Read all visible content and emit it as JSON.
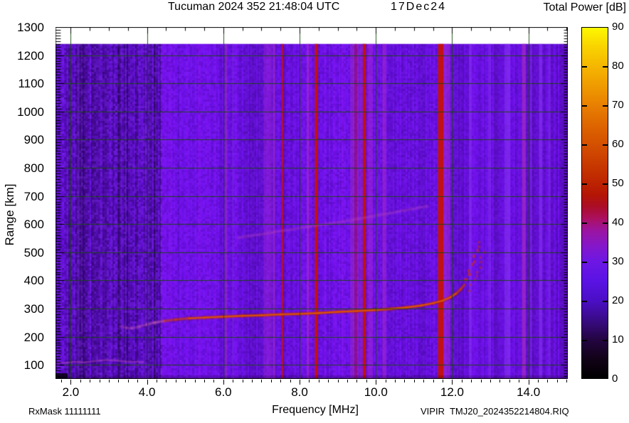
{
  "header": {
    "title": "Tucuman 2024 352 21:48:04 UTC",
    "date": "17Dec24",
    "colorbar_title": "Total Power [dB]"
  },
  "footer": {
    "rx_mask": "RxMask 11111111",
    "file_id": "VIPIR  TMJ20_2024352214804.RIQ"
  },
  "axes": {
    "x": {
      "label": "Frequency [MHz]",
      "min": 1.6,
      "max": 15.0,
      "major_ticks": [
        2,
        4,
        6,
        8,
        10,
        12,
        14
      ],
      "tick_labels": [
        "2.0",
        "4.0",
        "6.0",
        "8.0",
        "10.0",
        "12.0",
        "14.0"
      ],
      "minor_step": 0.25
    },
    "y": {
      "label": "Range [km]",
      "min": 50,
      "max": 1300,
      "major_ticks": [
        100,
        200,
        300,
        400,
        500,
        600,
        700,
        800,
        900,
        1000,
        1100,
        1200,
        1300
      ],
      "minor_step": 10
    }
  },
  "colorbar": {
    "min": 0,
    "max": 90,
    "tick_step": 10,
    "labels": [
      "0",
      "10",
      "20",
      "30",
      "40",
      "50",
      "60",
      "70",
      "80",
      "90"
    ],
    "stops": [
      [
        0,
        "#000000"
      ],
      [
        5,
        "#120218"
      ],
      [
        10,
        "#240542"
      ],
      [
        15,
        "#390b86"
      ],
      [
        20,
        "#4b0ec6"
      ],
      [
        25,
        "#5a13e4"
      ],
      [
        30,
        "#6d17e4"
      ],
      [
        34,
        "#8517c9"
      ],
      [
        38,
        "#9c14a0"
      ],
      [
        41,
        "#ab1060"
      ],
      [
        44,
        "#ab0d28"
      ],
      [
        47,
        "#b41505"
      ],
      [
        52,
        "#c12c00"
      ],
      [
        58,
        "#cf4700"
      ],
      [
        64,
        "#dc6100"
      ],
      [
        70,
        "#e87f00"
      ],
      [
        78,
        "#f3ab00"
      ],
      [
        85,
        "#f9d200"
      ],
      [
        90,
        "#fdf800"
      ]
    ]
  },
  "chart_data": {
    "type": "heatmap",
    "title": "Tucuman 2024 352 21:48:04 UTC 17Dec24",
    "xlabel": "Frequency [MHz]",
    "ylabel": "Range [km]",
    "zlabel": "Total Power [dB]",
    "xlim": [
      1.6,
      15.0
    ],
    "ylim": [
      50,
      1300
    ],
    "zlim": [
      0,
      90
    ],
    "grid": {
      "x_step_mhz": 2,
      "y_step_km": 100,
      "color": "#164a0a"
    },
    "data_top_km": 1240,
    "background": {
      "base_color": "#6c10e4",
      "zones": [
        {
          "f_range": [
            1.6,
            4.35
          ],
          "level": "dark mottled noise, ~15-22 dB"
        },
        {
          "f_range": [
            4.35,
            12.07
          ],
          "level": "violet noise, ~20-26 dB"
        },
        {
          "f_range": [
            12.07,
            15.0
          ],
          "level": "smoother violet noise, ~18-24 dB"
        }
      ]
    },
    "stripe_colors": {
      "red": "#c31111",
      "magenta": "#a62bc8",
      "light": "#8d36f5"
    },
    "rfi_stripes": [
      [
        2.2,
        0.05,
        "light",
        0.25
      ],
      [
        6.07,
        0.06,
        "magenta",
        0.55
      ],
      [
        6.25,
        0.05,
        "light",
        0.3
      ],
      [
        7.17,
        0.22,
        "magenta",
        0.35
      ],
      [
        7.33,
        0.06,
        "magenta",
        0.6
      ],
      [
        7.55,
        0.05,
        "red",
        0.8
      ],
      [
        8.22,
        0.07,
        "magenta",
        0.65
      ],
      [
        8.44,
        0.08,
        "red",
        1.0
      ],
      [
        9.38,
        0.1,
        "magenta",
        0.5
      ],
      [
        9.47,
        0.05,
        "red",
        0.65
      ],
      [
        9.6,
        0.18,
        "magenta",
        0.4
      ],
      [
        9.7,
        0.08,
        "red",
        1.0
      ],
      [
        9.86,
        0.12,
        "magenta",
        0.45
      ],
      [
        10.22,
        0.1,
        "magenta",
        0.55
      ],
      [
        11.7,
        0.14,
        "red",
        1.0
      ],
      [
        11.86,
        0.18,
        "magenta",
        0.5
      ],
      [
        12.48,
        0.08,
        "light",
        0.5
      ],
      [
        12.98,
        0.08,
        "light",
        0.4
      ],
      [
        13.45,
        0.15,
        "light",
        0.55
      ],
      [
        13.88,
        0.1,
        "magenta",
        0.75
      ],
      [
        14.07,
        0.05,
        "light",
        0.45
      ],
      [
        14.32,
        0.09,
        "light",
        0.55
      ],
      [
        14.55,
        0.06,
        "light",
        0.4
      ]
    ],
    "traces": {
      "f_layer": {
        "description": "F-region echo trace, ~45-55 dB, critical frequency ~12.7 MHz",
        "points": [
          [
            3.3,
            237,
            0.22
          ],
          [
            3.45,
            232,
            0.28
          ],
          [
            3.6,
            230,
            0.32
          ],
          [
            3.8,
            236,
            0.36
          ],
          [
            4.0,
            243,
            0.42
          ],
          [
            4.2,
            250,
            0.5
          ],
          [
            4.45,
            256,
            0.58
          ],
          [
            4.75,
            261,
            0.68
          ],
          [
            5.1,
            265,
            0.78
          ],
          [
            5.5,
            268,
            0.88
          ],
          [
            6.0,
            271,
            0.96
          ],
          [
            6.5,
            274,
            1.0
          ],
          [
            7.0,
            276,
            1.0
          ],
          [
            7.5,
            279,
            1.0
          ],
          [
            8.0,
            281,
            1.0
          ],
          [
            8.5,
            284,
            1.0
          ],
          [
            9.0,
            288,
            1.0
          ],
          [
            9.5,
            291,
            1.0
          ],
          [
            10.0,
            295,
            1.0
          ],
          [
            10.4,
            299,
            1.0
          ],
          [
            10.8,
            304,
            1.0
          ],
          [
            11.2,
            311,
            0.98
          ],
          [
            11.5,
            319,
            0.95
          ],
          [
            11.75,
            328,
            0.92
          ],
          [
            11.95,
            340,
            0.88
          ],
          [
            12.1,
            353,
            0.82
          ],
          [
            12.22,
            368,
            0.75
          ],
          [
            12.32,
            384,
            0.68
          ]
        ]
      },
      "f_layer_spread": {
        "description": "spread cusp echoes near critical frequency",
        "points": [
          [
            12.36,
            400
          ],
          [
            12.42,
            418
          ],
          [
            12.47,
            436
          ],
          [
            12.52,
            455
          ],
          [
            12.56,
            472
          ],
          [
            12.6,
            490
          ],
          [
            12.64,
            507
          ],
          [
            12.67,
            522
          ],
          [
            12.7,
            538
          ]
        ]
      },
      "second_hop": {
        "description": "faint multiple-hop echo",
        "points": [
          [
            6.4,
            552
          ],
          [
            7.0,
            564
          ],
          [
            7.6,
            577
          ],
          [
            8.2,
            590
          ],
          [
            8.8,
            602
          ],
          [
            9.4,
            615
          ],
          [
            10.0,
            630
          ],
          [
            10.5,
            642
          ],
          [
            11.0,
            655
          ],
          [
            11.35,
            664
          ]
        ]
      },
      "e_layer": {
        "description": "faint low-altitude echo",
        "points": [
          [
            1.62,
            109
          ],
          [
            1.85,
            107
          ],
          [
            2.1,
            111
          ],
          [
            2.35,
            109
          ],
          [
            2.6,
            113
          ],
          [
            2.85,
            116
          ],
          [
            3.1,
            117
          ],
          [
            3.35,
            113
          ],
          [
            3.6,
            111
          ],
          [
            3.9,
            110
          ]
        ]
      }
    }
  }
}
